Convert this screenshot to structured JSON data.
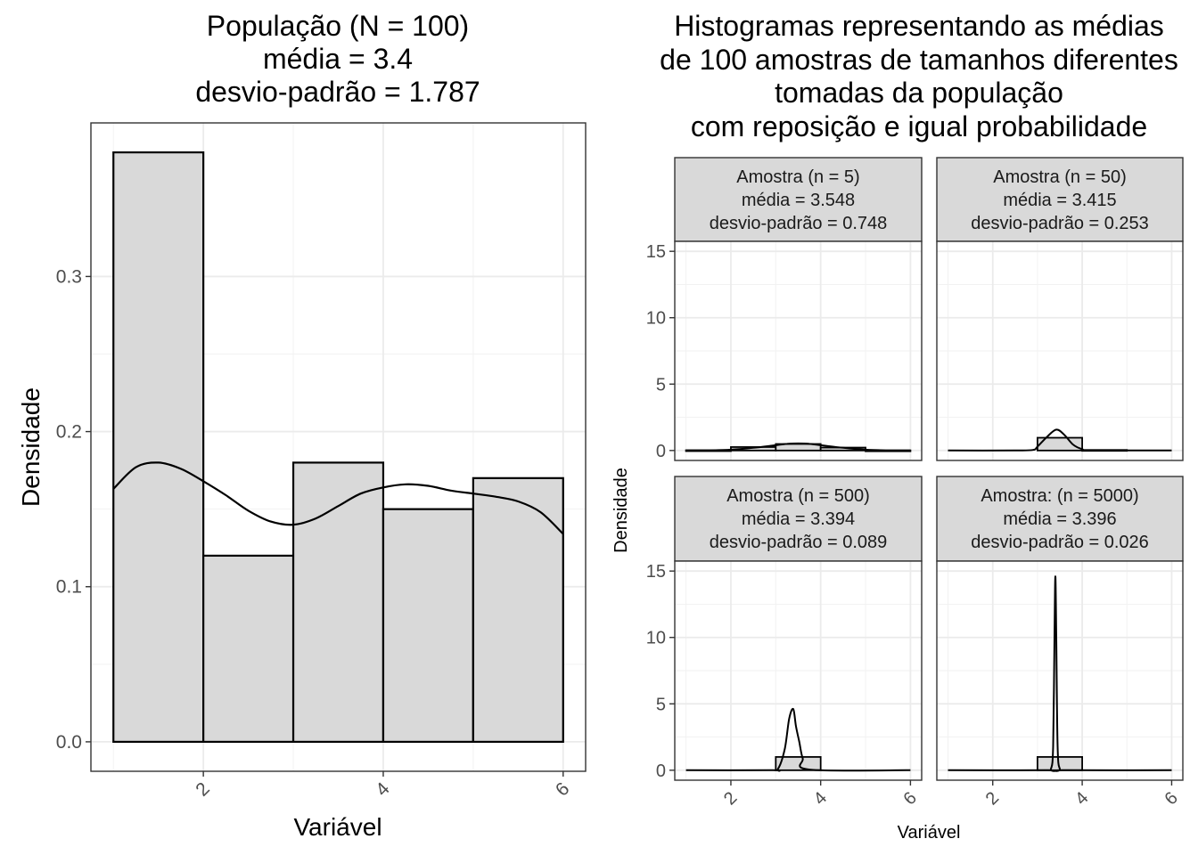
{
  "chart_data": [
    {
      "type": "bar",
      "title_lines": [
        "População (N = 100)",
        "média = 3.4",
        "desvio-padrão = 1.787"
      ],
      "xlabel": "Variável",
      "ylabel": "Densidade",
      "xlim": [
        0.75,
        6.25
      ],
      "ylim": [
        -0.019,
        0.399
      ],
      "xticks": [
        2,
        4,
        6
      ],
      "yticks": [
        0.0,
        0.1,
        0.2,
        0.3
      ],
      "ytick_labels": [
        "0.0",
        "0.1",
        "0.2",
        "0.3"
      ],
      "bins": [
        {
          "x0": 1,
          "x1": 2,
          "value": 0.38
        },
        {
          "x0": 2,
          "x1": 3,
          "value": 0.12
        },
        {
          "x0": 3,
          "x1": 4,
          "value": 0.18
        },
        {
          "x0": 4,
          "x1": 5,
          "value": 0.15
        },
        {
          "x0": 5,
          "x1": 6,
          "value": 0.17
        }
      ],
      "density_curve": {
        "x": [
          1.0,
          1.25,
          1.5,
          1.75,
          2.0,
          2.25,
          2.5,
          2.75,
          3.0,
          3.25,
          3.5,
          3.75,
          4.0,
          4.25,
          4.5,
          4.75,
          5.0,
          5.25,
          5.5,
          5.75,
          6.0
        ],
        "y": [
          0.163,
          0.177,
          0.18,
          0.176,
          0.168,
          0.159,
          0.149,
          0.142,
          0.14,
          0.144,
          0.152,
          0.16,
          0.164,
          0.166,
          0.165,
          0.162,
          0.16,
          0.158,
          0.155,
          0.148,
          0.134
        ]
      },
      "grid": true
    },
    {
      "type": "bar",
      "title_lines": [
        "Histogramas representando as médias",
        "de 100 amostras de tamanhos diferentes",
        "tomadas da população",
        "com reposição e igual probabilidade"
      ],
      "xlabel": "Variável",
      "ylabel": "Densidade",
      "xlim": [
        0.75,
        6.25
      ],
      "ylim": [
        -0.75,
        15.75
      ],
      "xticks": [
        2,
        4,
        6
      ],
      "yticks": [
        0,
        5,
        10,
        15
      ],
      "grid": true,
      "facets": [
        {
          "strip": [
            "Amostra (n = 5)",
            "média = 3.548",
            "desvio-padrão = 0.748"
          ],
          "bins": [
            {
              "x0": 1,
              "x1": 2,
              "value": 0.02
            },
            {
              "x0": 2,
              "x1": 3,
              "value": 0.26
            },
            {
              "x0": 3,
              "x1": 4,
              "value": 0.49
            },
            {
              "x0": 4,
              "x1": 5,
              "value": 0.22
            },
            {
              "x0": 5,
              "x1": 6,
              "value": 0.01
            }
          ],
          "density_curve": {
            "x": [
              1.0,
              1.5,
              2.0,
              2.5,
              3.0,
              3.25,
              3.5,
              3.75,
              4.0,
              4.5,
              5.0,
              5.5,
              6.0
            ],
            "y": [
              0.0,
              0.01,
              0.06,
              0.2,
              0.4,
              0.5,
              0.53,
              0.5,
              0.4,
              0.2,
              0.06,
              0.01,
              0.0
            ]
          }
        },
        {
          "strip": [
            "Amostra (n = 50)",
            "média = 3.415",
            "desvio-padrão = 0.253"
          ],
          "bins": [
            {
              "x0": 3,
              "x1": 4,
              "value": 0.96
            },
            {
              "x0": 4,
              "x1": 5,
              "value": 0.04
            }
          ],
          "density_curve": {
            "x": [
              1.0,
              2.5,
              2.9,
              3.0,
              3.2,
              3.42,
              3.6,
              3.8,
              4.0,
              4.2,
              6.0
            ],
            "y": [
              0.0,
              0.0,
              0.04,
              0.29,
              0.98,
              1.57,
              1.18,
              0.43,
              0.1,
              0.02,
              0.0
            ]
          }
        },
        {
          "strip": [
            "Amostra (n = 500)",
            "média = 3.394",
            "desvio-padrão = 0.089"
          ],
          "bins": [
            {
              "x0": 3,
              "x1": 4,
              "value": 1.0
            }
          ],
          "density_curve": {
            "x": [
              1.0,
              2.9,
              3.05,
              3.2,
              3.3,
              3.39,
              3.45,
              3.52,
              3.6,
              3.75,
              6.0
            ],
            "y": [
              0.0,
              0.0,
              0.1,
              1.6,
              3.9,
              4.6,
              3.3,
              2.2,
              0.9,
              0.05,
              0.0
            ]
          }
        },
        {
          "strip": [
            "Amostra: (n = 5000)",
            "média = 3.396",
            "desvio-padrão = 0.026"
          ],
          "bins": [
            {
              "x0": 3,
              "x1": 4,
              "value": 1.0
            }
          ],
          "density_curve": {
            "x": [
              1.0,
              3.2,
              3.3,
              3.35,
              3.38,
              3.4,
              3.42,
              3.45,
              3.5,
              3.6,
              6.0
            ],
            "y": [
              0.0,
              0.0,
              0.1,
              1.8,
              10.0,
              14.6,
              10.0,
              1.8,
              0.1,
              0.0,
              0.0
            ]
          }
        }
      ]
    }
  ],
  "colors": {
    "bar_fill": "#d9d9d9",
    "bar_stroke": "#000000",
    "curve": "#000000",
    "grid_major": "#ebebeb",
    "grid_minor": "#f2f2f2",
    "panel_border": "#333333",
    "strip_fill": "#d9d9d9",
    "tick_text": "#4d4d4d"
  }
}
